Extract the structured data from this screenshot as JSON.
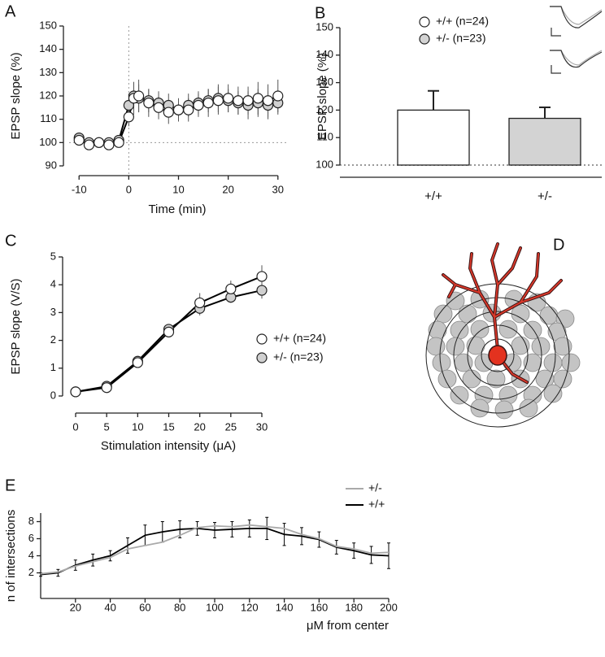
{
  "chart_data": [
    {
      "panel": "A",
      "type": "line",
      "markers": true,
      "xlabel": "Time (min)",
      "ylabel": "EPSP slope (%)",
      "x": [
        -10,
        -8,
        -6,
        -4,
        -2,
        0,
        1,
        2,
        4,
        6,
        8,
        10,
        12,
        14,
        16,
        18,
        20,
        22,
        24,
        26,
        28,
        30
      ],
      "xlim": [
        -12,
        32
      ],
      "ylim": [
        90,
        150
      ],
      "xticks": [
        -10,
        0,
        10,
        20,
        30
      ],
      "yticks": [
        90,
        100,
        110,
        120,
        130,
        140,
        150
      ],
      "hline": 100,
      "vline": 0,
      "series": [
        {
          "color": "#d0d0d0",
          "values": [
            102,
            100,
            100,
            100,
            101,
            116,
            120,
            119,
            118,
            117,
            116,
            114,
            116,
            117,
            118,
            119,
            118,
            117,
            116,
            117,
            116,
            117
          ],
          "errors": [
            1,
            1,
            1,
            1,
            1,
            5,
            6,
            6,
            5,
            5,
            5,
            5,
            5,
            5,
            5,
            6,
            5,
            5,
            6,
            6,
            6,
            5
          ]
        },
        {
          "color": "#ffffff",
          "values": [
            101,
            99,
            100,
            99,
            100,
            111,
            119,
            120,
            117,
            115,
            113,
            114,
            114,
            116,
            117,
            118,
            119,
            118,
            118,
            119,
            118,
            120
          ],
          "errors": [
            1,
            1,
            1,
            1,
            1,
            4,
            7,
            7,
            6,
            5,
            5,
            5,
            5,
            5,
            6,
            6,
            6,
            6,
            6,
            7,
            7,
            7
          ]
        }
      ]
    },
    {
      "panel": "B",
      "type": "bar",
      "ylabel": "EPSP slope (%)",
      "categories": [
        "+/+",
        "+/-"
      ],
      "values": [
        120,
        117
      ],
      "errors": [
        7,
        4
      ],
      "colors": [
        "#ffffff",
        "#d3d3d3"
      ],
      "ylim": [
        100,
        150
      ],
      "yticks": [
        100,
        110,
        120,
        130,
        140,
        150
      ],
      "hline": 100,
      "legend": [
        {
          "name": "+/+ (n=24)",
          "color": "#ffffff"
        },
        {
          "name": "+/- (n=23)",
          "color": "#d3d3d3"
        }
      ]
    },
    {
      "panel": "C",
      "type": "line",
      "markers": true,
      "xlabel": "Stimulation intensity (μA)",
      "ylabel": "EPSP slope (V/S)",
      "x": [
        0,
        5,
        10,
        15,
        20,
        25,
        30
      ],
      "xlim": [
        0,
        30
      ],
      "ylim": [
        0,
        5
      ],
      "xticks": [
        0,
        5,
        10,
        15,
        20,
        25,
        30
      ],
      "yticks": [
        0,
        1,
        2,
        3,
        4,
        5
      ],
      "series": [
        {
          "name": "+/- (n=23)",
          "color": "#d0d0d0",
          "values": [
            0.15,
            0.35,
            1.25,
            2.4,
            3.15,
            3.55,
            3.8
          ],
          "errors": [
            0.05,
            0.05,
            0.1,
            0.1,
            0.25,
            0.2,
            0.3
          ]
        },
        {
          "name": "+/+ (n=24)",
          "color": "#ffffff",
          "values": [
            0.15,
            0.3,
            1.2,
            2.3,
            3.35,
            3.85,
            4.3
          ],
          "errors": [
            0.05,
            0.05,
            0.1,
            0.15,
            0.35,
            0.3,
            0.4
          ]
        }
      ]
    },
    {
      "panel": "E",
      "type": "line",
      "markers": false,
      "xlabel": "μM from center",
      "ylabel": "n of intersections",
      "x": [
        0,
        10,
        20,
        30,
        40,
        50,
        60,
        70,
        80,
        90,
        100,
        110,
        120,
        130,
        140,
        150,
        160,
        170,
        180,
        190,
        200
      ],
      "xlim": [
        0,
        200
      ],
      "ylim": [
        -1,
        9
      ],
      "xticks": [
        20,
        40,
        60,
        80,
        100,
        120,
        140,
        160,
        180,
        200
      ],
      "yticks": [
        2,
        4,
        6,
        8
      ],
      "series": [
        {
          "name": "+/+",
          "color": "#000000",
          "values": [
            1.8,
            2.0,
            2.9,
            3.5,
            4.0,
            5.2,
            6.4,
            6.8,
            7.1,
            7.2,
            7.0,
            7.1,
            7.2,
            7.2,
            6.5,
            6.3,
            5.9,
            5.0,
            4.6,
            4.1,
            4.0
          ],
          "errors": [
            0.2,
            0.4,
            0.6,
            0.7,
            0.6,
            0.9,
            1.2,
            1.2,
            1.0,
            0.8,
            0.9,
            0.9,
            1.0,
            1.3,
            1.3,
            1.0,
            0.9,
            0.8,
            0.9,
            1.0,
            1.5
          ]
        },
        {
          "name": "+/-",
          "color": "#aaaaaa",
          "values": [
            1.9,
            2.1,
            2.8,
            3.3,
            3.8,
            4.8,
            5.2,
            5.6,
            6.4,
            7.3,
            7.5,
            7.4,
            7.6,
            7.4,
            7.2,
            6.5,
            6.0,
            5.1,
            4.8,
            4.3,
            4.4
          ]
        }
      ]
    }
  ],
  "diagram": {
    "panel": "D"
  }
}
